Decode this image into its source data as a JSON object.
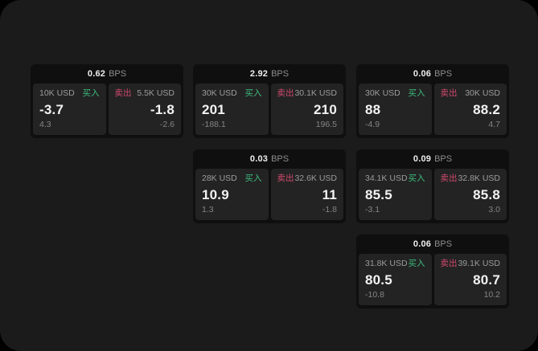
{
  "labels": {
    "bps_unit": "BPS",
    "buy_label": "买入",
    "sell_label": "卖出"
  },
  "colors": {
    "buy_green": "#3cbd7e",
    "sell_red": "#d04a6e",
    "window_bg": "#1b1b1b",
    "card_bg": "#0f0f0f",
    "panel_bg": "#232323"
  },
  "cards": [
    {
      "bps_value": "0.62",
      "buy": {
        "amount": "10K USD",
        "value": "-3.7",
        "delta": "4.3"
      },
      "sell": {
        "amount": "5.5K USD",
        "value": "-1.8",
        "delta": "-2.6"
      }
    },
    {
      "bps_value": "2.92",
      "buy": {
        "amount": "30K USD",
        "value": "201",
        "delta": "-188.1"
      },
      "sell": {
        "amount": "30.1K USD",
        "value": "210",
        "delta": "196.5"
      }
    },
    {
      "bps_value": "0.06",
      "buy": {
        "amount": "30K USD",
        "value": "88",
        "delta": "-4.9"
      },
      "sell": {
        "amount": "30K USD",
        "value": "88.2",
        "delta": "4.7"
      }
    },
    {
      "bps_value": "0.03",
      "buy": {
        "amount": "28K USD",
        "value": "10.9",
        "delta": "1.3"
      },
      "sell": {
        "amount": "32.6K USD",
        "value": "11",
        "delta": "-1.8"
      }
    },
    {
      "bps_value": "0.09",
      "buy": {
        "amount": "34.1K USD",
        "value": "85.5",
        "delta": "-3.1"
      },
      "sell": {
        "amount": "32.8K USD",
        "value": "85.8",
        "delta": "3.0"
      }
    },
    {
      "bps_value": "0.06",
      "buy": {
        "amount": "31.8K USD",
        "value": "80.5",
        "delta": "-10.8"
      },
      "sell": {
        "amount": "39.1K USD",
        "value": "80.7",
        "delta": "10.2"
      }
    }
  ]
}
